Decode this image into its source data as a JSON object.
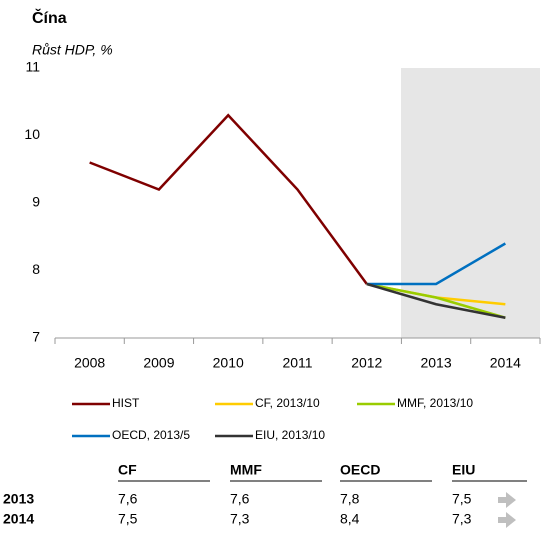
{
  "chart_data": {
    "type": "line",
    "title": "Čína",
    "subtitle": "Růst HDP, %",
    "categories": [
      "2008",
      "2009",
      "2010",
      "2011",
      "2012",
      "2013",
      "2014"
    ],
    "series": [
      {
        "name": "HIST",
        "color": "#7f0000",
        "values": [
          9.6,
          9.2,
          10.3,
          9.2,
          7.8,
          null,
          null
        ]
      },
      {
        "name": "CF, 2013/10",
        "color": "#ffcc00",
        "values": [
          null,
          null,
          null,
          null,
          7.8,
          7.6,
          7.5
        ]
      },
      {
        "name": "MMF, 2013/10",
        "color": "#99cc00",
        "values": [
          null,
          null,
          null,
          null,
          7.8,
          7.6,
          7.3
        ]
      },
      {
        "name": "OECD, 2013/5",
        "color": "#0070c0",
        "values": [
          null,
          null,
          null,
          null,
          7.8,
          7.8,
          8.4
        ]
      },
      {
        "name": "EIU, 2013/10",
        "color": "#333333",
        "values": [
          null,
          null,
          null,
          null,
          7.8,
          7.5,
          7.3
        ]
      }
    ],
    "ylim": [
      7,
      11
    ],
    "yticks": [
      7,
      8,
      9,
      10,
      11
    ],
    "grid": false
  },
  "table": {
    "columns": [
      "CF",
      "MMF",
      "OECD",
      "EIU"
    ],
    "rows": [
      {
        "label": "2013",
        "cells": [
          "7,6",
          "7,6",
          "7,8",
          "7,5"
        ]
      },
      {
        "label": "2014",
        "cells": [
          "7,5",
          "7,3",
          "8,4",
          "7,3"
        ]
      }
    ]
  }
}
